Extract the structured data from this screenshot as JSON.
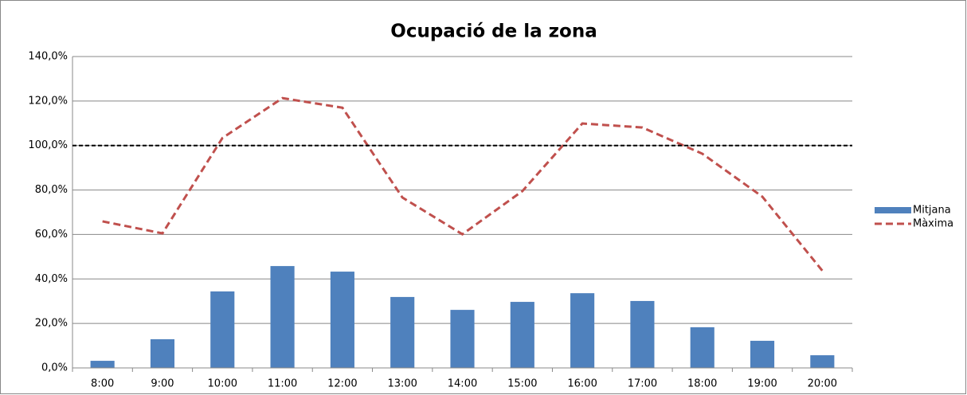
{
  "chart_data": {
    "type": "bar_line",
    "title": "Ocupació de la zona",
    "categories": [
      "8:00",
      "9:00",
      "10:00",
      "11:00",
      "12:00",
      "13:00",
      "14:00",
      "15:00",
      "16:00",
      "17:00",
      "18:00",
      "19:00",
      "20:00"
    ],
    "series": [
      {
        "name": "Mitjana",
        "type": "bar",
        "color": "#4f81bd",
        "values": [
          3.2,
          12.9,
          34.4,
          45.8,
          43.3,
          31.9,
          26.1,
          29.7,
          33.6,
          30.1,
          18.3,
          12.2,
          5.7
        ]
      },
      {
        "name": "Màxima",
        "type": "line",
        "color": "#c0504d",
        "dashed": true,
        "values": [
          65.9,
          60.5,
          103.4,
          121.3,
          117.0,
          76.6,
          60.1,
          79.5,
          109.9,
          108.1,
          96.3,
          77.0,
          43.7
        ]
      }
    ],
    "reference_line": {
      "value": 100,
      "color": "#000000",
      "dashed": true
    },
    "ylim": [
      0,
      140
    ],
    "yticks": [
      {
        "value": 0,
        "label": "0,0%"
      },
      {
        "value": 20,
        "label": "20,0%"
      },
      {
        "value": 40,
        "label": "40,0%"
      },
      {
        "value": 60,
        "label": "60,0%"
      },
      {
        "value": 80,
        "label": "80,0%"
      },
      {
        "value": 100,
        "label": "100,0%"
      },
      {
        "value": 120,
        "label": "120,0%"
      },
      {
        "value": 140,
        "label": "140,0%"
      }
    ],
    "grid": true,
    "legend": "right"
  }
}
